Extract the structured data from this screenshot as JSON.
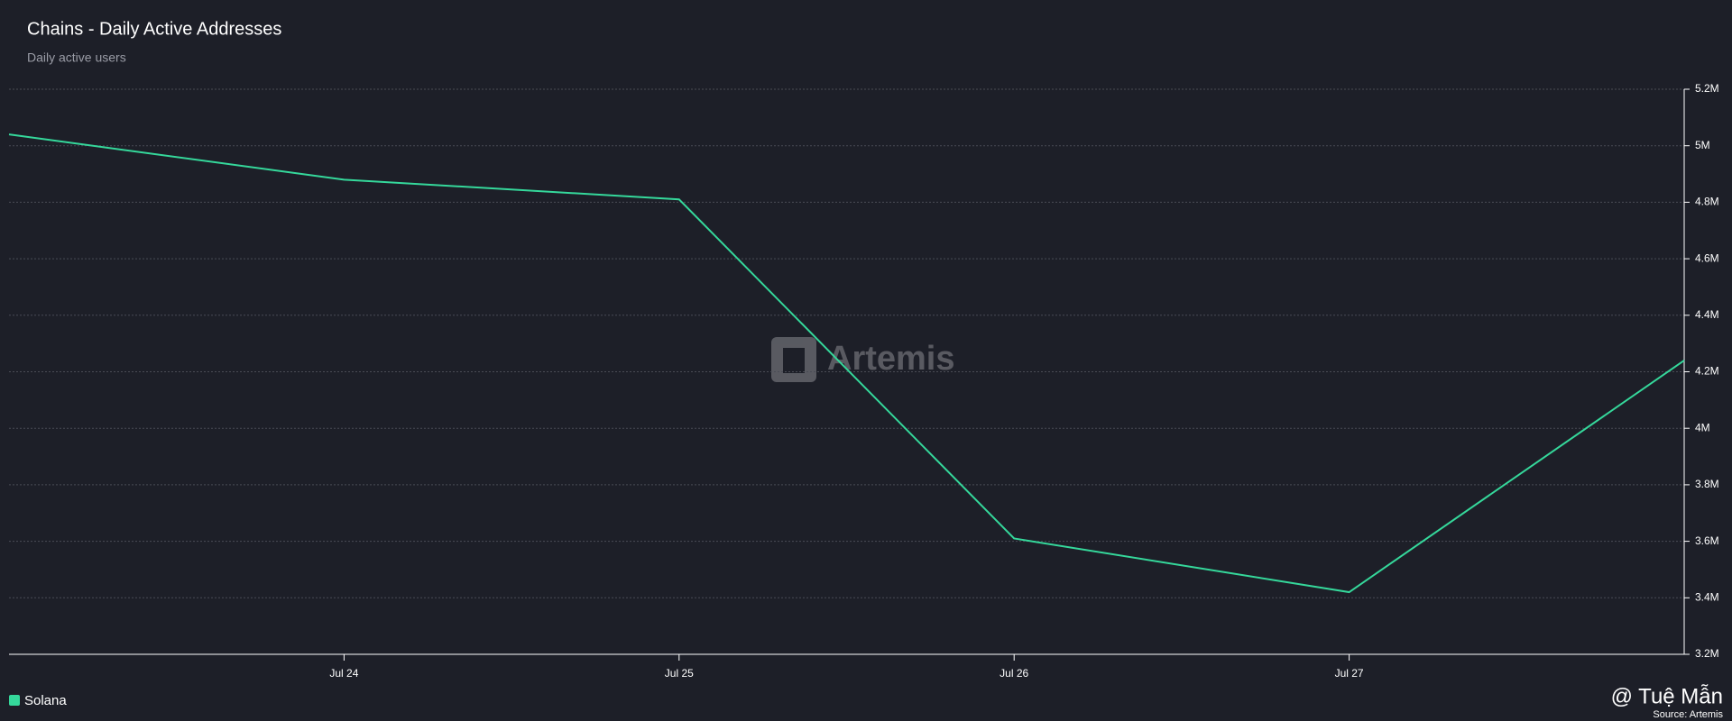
{
  "chart_data": {
    "type": "line",
    "title": "Chains - Daily Active Addresses",
    "subtitle": "Daily active users",
    "categories": [
      null,
      "Jul 24",
      "Jul 25",
      "Jul 26",
      "Jul 27",
      null
    ],
    "series": [
      {
        "name": "Solana",
        "color": "#35d89b",
        "values": [
          5040000,
          4880000,
          4810000,
          3610000,
          3420000,
          4240000
        ]
      }
    ],
    "ylim": [
      3200000,
      5200000
    ],
    "yticks": [
      {
        "value": 3200000,
        "label": "3.2M"
      },
      {
        "value": 3400000,
        "label": "3.4M"
      },
      {
        "value": 3600000,
        "label": "3.6M"
      },
      {
        "value": 3800000,
        "label": "3.8M"
      },
      {
        "value": 4000000,
        "label": "4M"
      },
      {
        "value": 4200000,
        "label": "4.2M"
      },
      {
        "value": 4400000,
        "label": "4.4M"
      },
      {
        "value": 4600000,
        "label": "4.6M"
      },
      {
        "value": 4800000,
        "label": "4.8M"
      },
      {
        "value": 5000000,
        "label": "5M"
      },
      {
        "value": 5200000,
        "label": "5.2M"
      }
    ],
    "grid": true,
    "y_axis_side": "right",
    "watermark": "Artemis",
    "credit": "@ Tuệ Mẫn",
    "source": "Source: Artemis"
  }
}
